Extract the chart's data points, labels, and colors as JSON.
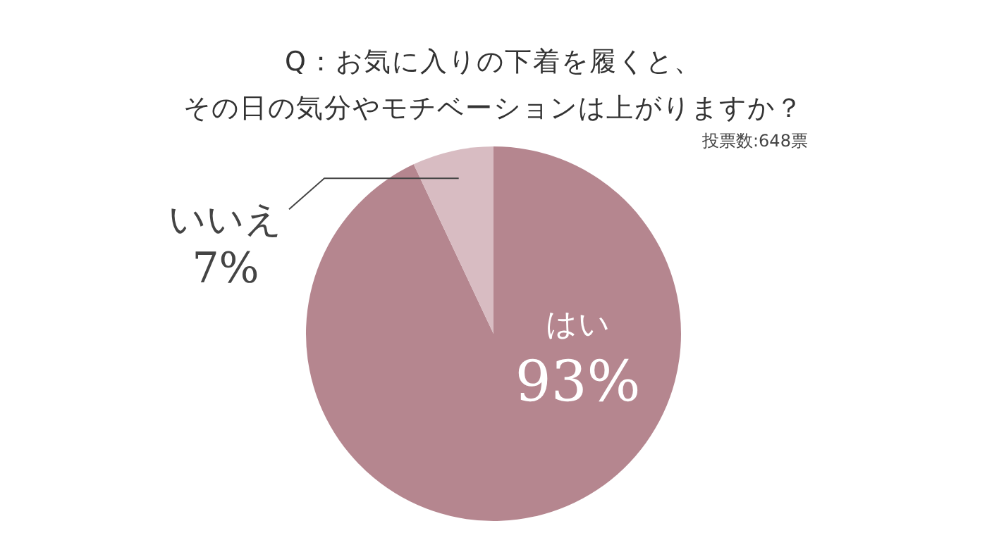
{
  "chart_data": {
    "type": "pie",
    "title": "Q：お気に入りの下着を履くと、",
    "subtitle": "その日の気分やモチベーションは上がりますか？",
    "annotations": [
      "投票数:648票"
    ],
    "categories": [
      "はい",
      "いいえ"
    ],
    "values": [
      93,
      7
    ],
    "colors": [
      "#b5868f",
      "#d8bcc2"
    ],
    "value_labels": [
      "93%",
      "7%"
    ],
    "legend": false
  }
}
